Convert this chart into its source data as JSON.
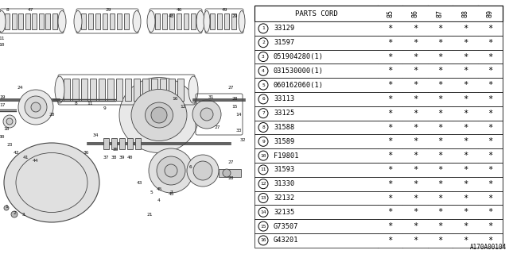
{
  "diagram_label": "A170A00104",
  "parts": [
    {
      "num": 1,
      "code": "33129"
    },
    {
      "num": 2,
      "code": "31597"
    },
    {
      "num": 3,
      "code": "051904280(1)"
    },
    {
      "num": 4,
      "code": "031530000(1)"
    },
    {
      "num": 5,
      "code": "060162060(1)"
    },
    {
      "num": 6,
      "code": "33113"
    },
    {
      "num": 7,
      "code": "33125"
    },
    {
      "num": 8,
      "code": "31588"
    },
    {
      "num": 9,
      "code": "31589"
    },
    {
      "num": 10,
      "code": "F19801"
    },
    {
      "num": 11,
      "code": "31593"
    },
    {
      "num": 12,
      "code": "31330"
    },
    {
      "num": 13,
      "code": "32132"
    },
    {
      "num": 14,
      "code": "32135"
    },
    {
      "num": 15,
      "code": "G73507"
    },
    {
      "num": 16,
      "code": "G43201"
    }
  ],
  "years": [
    "85",
    "86",
    "87",
    "88",
    "89"
  ],
  "bg_color": "#ffffff",
  "line_color": "#000000",
  "draw_color": "#444444"
}
